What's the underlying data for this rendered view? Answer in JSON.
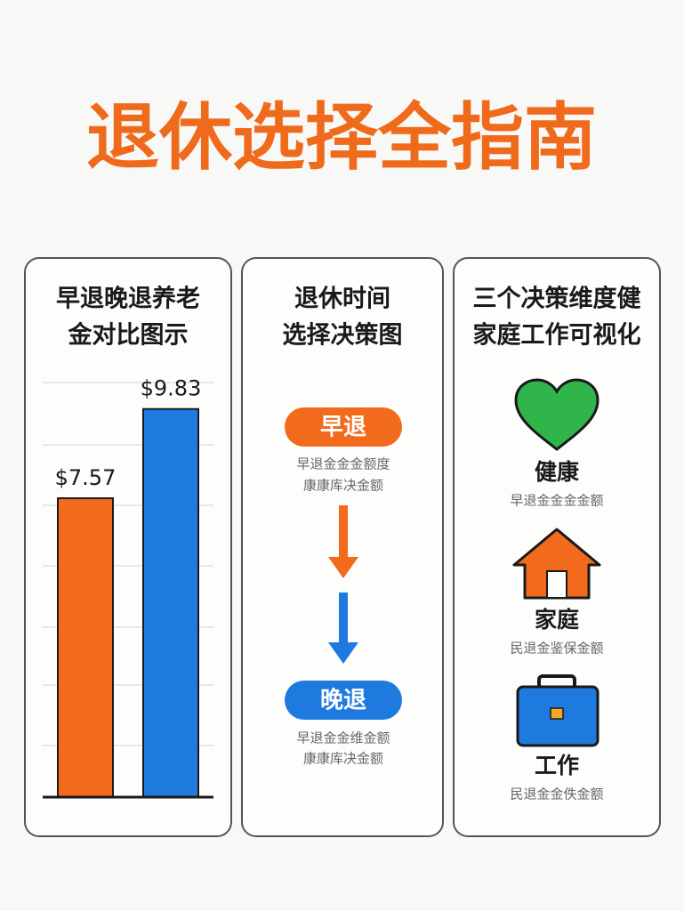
{
  "title": "退休选择全指南",
  "chart_data": {
    "type": "bar",
    "title": [
      "早退晚退养老",
      "金对比图示"
    ],
    "categories": [
      null,
      null
    ],
    "values": [
      7.57,
      9.83
    ],
    "value_labels": [
      "$7.57",
      "$9.83"
    ],
    "colors": [
      "#f26a1b",
      "#1f7ae0"
    ],
    "ylim": [
      0,
      10.5
    ],
    "grid": true
  },
  "decision": {
    "title": [
      "退休时间",
      "选择决策图"
    ],
    "steps": [
      {
        "label": "早退",
        "notes": [
          "早退金金金额度",
          "康康库决金额"
        ]
      },
      {
        "label": "晚退",
        "notes": [
          "早退金金维金额",
          "康康库决金额"
        ]
      }
    ]
  },
  "dimensions": {
    "title": [
      "三个决策维度健",
      "家庭工作可视化"
    ],
    "items": [
      {
        "label": "健康",
        "note": "早退金金金金额"
      },
      {
        "label": "家庭",
        "note": "民退金鉴保金额"
      },
      {
        "label": "工作",
        "note": "民退金金佚金额"
      }
    ]
  }
}
